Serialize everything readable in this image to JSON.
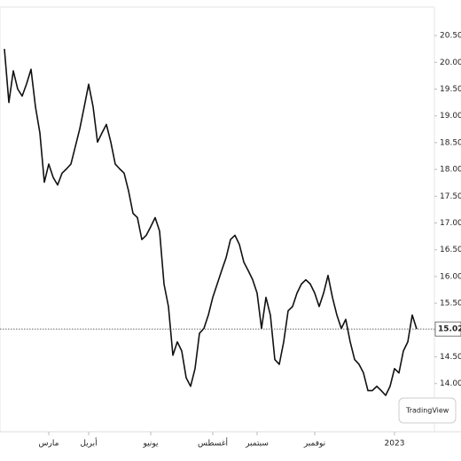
{
  "chart_data": {
    "type": "line",
    "categories": [
      null,
      null,
      null,
      null,
      null,
      null,
      null,
      null,
      null,
      null,
      "مارس",
      null,
      null,
      null,
      null,
      null,
      null,
      null,
      null,
      "أبريل",
      null,
      null,
      null,
      null,
      null,
      null,
      null,
      null,
      null,
      null,
      null,
      null,
      null,
      "يونيو",
      null,
      null,
      null,
      null,
      null,
      null,
      null,
      null,
      null,
      null,
      null,
      null,
      null,
      "أغسطس",
      null,
      null,
      null,
      null,
      null,
      null,
      null,
      null,
      null,
      "سبتمبر",
      null,
      null,
      null,
      null,
      null,
      null,
      null,
      null,
      null,
      null,
      null,
      null,
      "نوفمبر",
      null,
      null,
      null,
      null,
      null,
      null,
      null,
      null,
      null,
      null,
      null,
      null,
      null,
      null,
      null,
      null,
      null,
      "2023",
      null,
      null,
      null,
      null,
      null
    ],
    "values": [
      20.25,
      19.25,
      19.84,
      19.5,
      19.37,
      19.6,
      19.87,
      19.17,
      18.68,
      17.76,
      18.1,
      17.85,
      17.71,
      17.93,
      18.01,
      18.1,
      18.43,
      18.76,
      19.17,
      19.59,
      19.17,
      18.51,
      18.68,
      18.84,
      18.51,
      18.1,
      18.01,
      17.93,
      17.6,
      17.18,
      17.1,
      16.69,
      16.77,
      16.93,
      17.1,
      16.85,
      15.86,
      15.44,
      14.53,
      14.78,
      14.61,
      14.11,
      13.95,
      14.28,
      14.94,
      15.03,
      15.28,
      15.61,
      15.86,
      16.11,
      16.35,
      16.69,
      16.77,
      16.6,
      16.27,
      16.11,
      15.94,
      15.69,
      15.03,
      15.61,
      15.28,
      14.45,
      14.36,
      14.78,
      15.36,
      15.44,
      15.69,
      15.86,
      15.94,
      15.86,
      15.69,
      15.44,
      15.69,
      16.02,
      15.61,
      15.28,
      15.03,
      15.2,
      14.78,
      14.45,
      14.36,
      14.2,
      13.87,
      13.87,
      13.95,
      13.87,
      13.78,
      13.95,
      14.28,
      14.2,
      14.61,
      14.78,
      15.28,
      15.02
    ],
    "color": "#111111",
    "ylim": [
      13.3,
      20.75
    ],
    "yticks": [
      {
        "value": 14,
        "label": "14.00"
      },
      {
        "value": 14.5,
        "label": "14.50"
      },
      {
        "value": 15,
        "label": "15.00"
      },
      {
        "value": 15.5,
        "label": "15.50"
      },
      {
        "value": 16,
        "label": "16.00"
      },
      {
        "value": 16.5,
        "label": "16.50"
      },
      {
        "value": 17,
        "label": "17.00"
      },
      {
        "value": 17.5,
        "label": "17.50"
      },
      {
        "value": 18,
        "label": "18.00"
      },
      {
        "value": 18.5,
        "label": "18.50"
      },
      {
        "value": 19,
        "label": "19.00"
      },
      {
        "value": 19.5,
        "label": "19.50"
      },
      {
        "value": 20,
        "label": "20.00"
      },
      {
        "value": 20.5,
        "label": "20.50"
      }
    ],
    "watermark": "TradingView"
  }
}
